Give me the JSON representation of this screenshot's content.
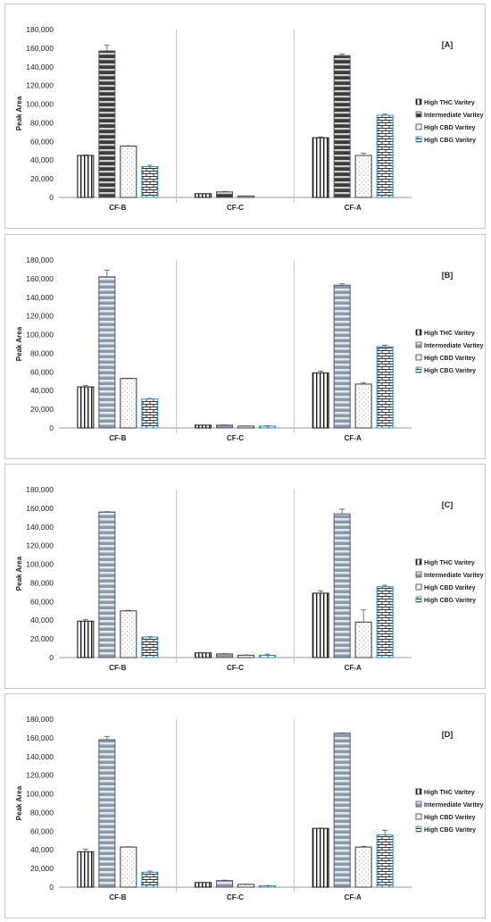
{
  "chart_data": [
    {
      "type": "bar",
      "title": "[A]",
      "ylabel": "Peak Area",
      "ylim": [
        0,
        180000
      ],
      "yticks": [
        "0",
        "20,000",
        "40,000",
        "60,000",
        "80,000",
        "100,000",
        "120,000",
        "140,000",
        "160,000",
        "180,000"
      ],
      "categories": [
        "CF-B",
        "CF-C",
        "CF-A"
      ],
      "legend_position": "right",
      "series": [
        {
          "name": "High THC Varitey",
          "pattern": "vlines",
          "values": [
            45000,
            4000,
            64000
          ],
          "errors": [
            600,
            300,
            800
          ]
        },
        {
          "name": "Intermediate Varitey",
          "pattern": "hbands-dark",
          "values": [
            157000,
            6000,
            152000
          ],
          "errors": [
            6000,
            400,
            1500
          ]
        },
        {
          "name": "High CBD Varitey",
          "pattern": "dots",
          "values": [
            55000,
            1500,
            45000
          ],
          "errors": [
            400,
            200,
            2500
          ]
        },
        {
          "name": "High CBG Varitey",
          "pattern": "bricks",
          "values": [
            33000,
            0,
            88000
          ],
          "errors": [
            1500,
            0,
            1200
          ]
        }
      ]
    },
    {
      "type": "bar",
      "title": "[B]",
      "ylabel": "Peak Area",
      "ylim": [
        0,
        180000
      ],
      "yticks": [
        "0",
        "20,000",
        "40,000",
        "60,000",
        "80,000",
        "100,000",
        "120,000",
        "140,000",
        "160,000",
        "180,000"
      ],
      "categories": [
        "CF-B",
        "CF-C",
        "CF-A"
      ],
      "legend_position": "right",
      "series": [
        {
          "name": "High THC Varitey",
          "pattern": "vlines",
          "values": [
            44000,
            3000,
            59000
          ],
          "errors": [
            1500,
            200,
            2000
          ]
        },
        {
          "name": "Intermediate Varitey",
          "pattern": "hbands",
          "values": [
            162000,
            3000,
            153000
          ],
          "errors": [
            7000,
            200,
            1500
          ]
        },
        {
          "name": "High CBD Varitey",
          "pattern": "dots",
          "values": [
            53000,
            2000,
            47000
          ],
          "errors": [
            400,
            200,
            1500
          ]
        },
        {
          "name": "High CBG Varitey",
          "pattern": "bricks",
          "values": [
            31000,
            2000,
            87000
          ],
          "errors": [
            600,
            200,
            1500
          ]
        }
      ]
    },
    {
      "type": "bar",
      "title": "[C]",
      "ylabel": "Peak Area",
      "ylim": [
        0,
        180000
      ],
      "yticks": [
        "0",
        "20,000",
        "40,000",
        "60,000",
        "80,000",
        "100,000",
        "120,000",
        "140,000",
        "160,000",
        "180,000"
      ],
      "categories": [
        "CF-B",
        "CF-C",
        "CF-A"
      ],
      "legend_position": "right",
      "series": [
        {
          "name": "High THC Varitey",
          "pattern": "vlines",
          "values": [
            39000,
            5000,
            69000
          ],
          "errors": [
            1500,
            300,
            2500
          ]
        },
        {
          "name": "Intermediate Varitey",
          "pattern": "hbands",
          "values": [
            156000,
            4000,
            154000
          ],
          "errors": [
            400,
            300,
            5000
          ]
        },
        {
          "name": "High CBD Varitey",
          "pattern": "dots",
          "values": [
            50000,
            2500,
            38000
          ],
          "errors": [
            600,
            300,
            13000
          ]
        },
        {
          "name": "High CBG Varitey",
          "pattern": "bricks",
          "values": [
            22000,
            2500,
            76000
          ],
          "errors": [
            400,
            1200,
            1500
          ]
        }
      ]
    },
    {
      "type": "bar",
      "title": "[D]",
      "ylabel": "Peak Area",
      "ylim": [
        0,
        180000
      ],
      "yticks": [
        "0",
        "20,000",
        "40,000",
        "60,000",
        "80,000",
        "100,000",
        "120,000",
        "140,000",
        "160,000",
        "180,000"
      ],
      "categories": [
        "CF-B",
        "CF-C",
        "CF-A"
      ],
      "legend_position": "right",
      "series": [
        {
          "name": "High THC Varitey",
          "pattern": "vlines",
          "values": [
            38000,
            5000,
            63000
          ],
          "errors": [
            2500,
            300,
            400
          ]
        },
        {
          "name": "Intermediate Varitey",
          "pattern": "hbands",
          "values": [
            158000,
            7000,
            165000
          ],
          "errors": [
            3500,
            500,
            400
          ]
        },
        {
          "name": "High CBD Varitey",
          "pattern": "dots",
          "values": [
            43000,
            3000,
            43000
          ],
          "errors": [
            400,
            300,
            800
          ]
        },
        {
          "name": "High CBG Varitey",
          "pattern": "bricks",
          "values": [
            16000,
            1500,
            56000
          ],
          "errors": [
            1200,
            200,
            5000
          ]
        }
      ]
    }
  ]
}
